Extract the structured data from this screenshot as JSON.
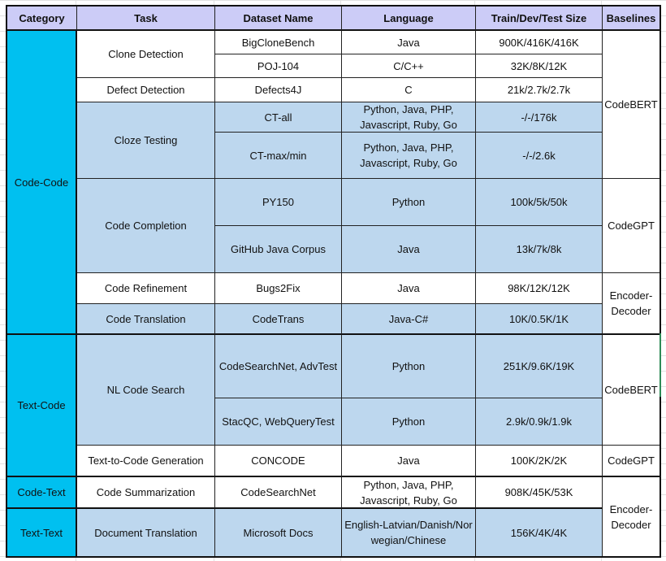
{
  "headers": [
    "Category",
    "Task",
    "Dataset Name",
    "Language",
    "Train/Dev/Test Size",
    "Baselines"
  ],
  "categories": [
    "Code-Code",
    "Text-Code",
    "Code-Text",
    "Text-Text"
  ],
  "tasks": [
    "Clone Detection",
    "Defect Detection",
    "Cloze Testing",
    "Code Completion",
    "Code Refinement",
    "Code Translation",
    "NL Code Search",
    "Text-to-Code Generation",
    "Code Summarization",
    "Document Translation"
  ],
  "rows": [
    {
      "dataset": "BigCloneBench",
      "language": "Java",
      "size": "900K/416K/416K"
    },
    {
      "dataset": "POJ-104",
      "language": "C/C++",
      "size": "32K/8K/12K"
    },
    {
      "dataset": "Defects4J",
      "language": "C",
      "size": "21k/2.7k/2.7k"
    },
    {
      "dataset": "CT-all",
      "language": "Python, Java, PHP, Javascript, Ruby, Go",
      "size": "-/-/176k"
    },
    {
      "dataset": "CT-max/min",
      "language": "Python, Java, PHP, Javascript, Ruby, Go",
      "size": "-/-/2.6k"
    },
    {
      "dataset": "PY150",
      "language": "Python",
      "size": "100k/5k/50k"
    },
    {
      "dataset": "GitHub Java Corpus",
      "language": "Java",
      "size": "13k/7k/8k"
    },
    {
      "dataset": "Bugs2Fix",
      "language": "Java",
      "size": "98K/12K/12K"
    },
    {
      "dataset": "CodeTrans",
      "language": "Java-C#",
      "size": "10K/0.5K/1K"
    },
    {
      "dataset": "CodeSearchNet, AdvTest",
      "language": "Python",
      "size": "251K/9.6K/19K"
    },
    {
      "dataset": "StacQC, WebQueryTest",
      "language": "Python",
      "size": "2.9k/0.9k/1.9k"
    },
    {
      "dataset": "CONCODE",
      "language": "Java",
      "size": "100K/2K/2K"
    },
    {
      "dataset": "CodeSearchNet",
      "language": "Python, Java, PHP, Javascript, Ruby, Go",
      "size": "908K/45K/53K"
    },
    {
      "dataset": "Microsoft Docs",
      "language": "English-Latvian/Danish/Norwegian/Chinese",
      "size": "156K/4K/4K"
    }
  ],
  "baselines": [
    "CodeBERT",
    "CodeGPT",
    "Encoder-Decoder",
    "CodeBERT",
    "CodeGPT",
    "Encoder-Decoder"
  ],
  "colors": {
    "header": "#ccccf7",
    "category": "#00c0f0",
    "highlight": "#bdd7ee"
  }
}
